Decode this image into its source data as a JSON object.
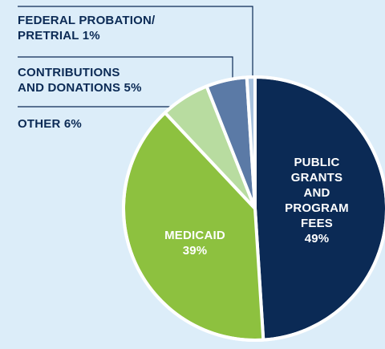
{
  "chart_data": {
    "type": "pie",
    "categories": [
      "PUBLIC GRANTS AND PROGRAM FEES",
      "MEDICAID",
      "OTHER",
      "CONTRIBUTIONS AND DONATIONS",
      "FEDERAL PROBATION/ PRETRIAL"
    ],
    "values": [
      49,
      39,
      6,
      5,
      1
    ],
    "value_labels": [
      "49%",
      "39%",
      "6%",
      "5%",
      "1%"
    ],
    "colors": [
      "#0b2a55",
      "#8dc13f",
      "#b8dca0",
      "#5b7aa6",
      "#a8c2de"
    ]
  }
}
